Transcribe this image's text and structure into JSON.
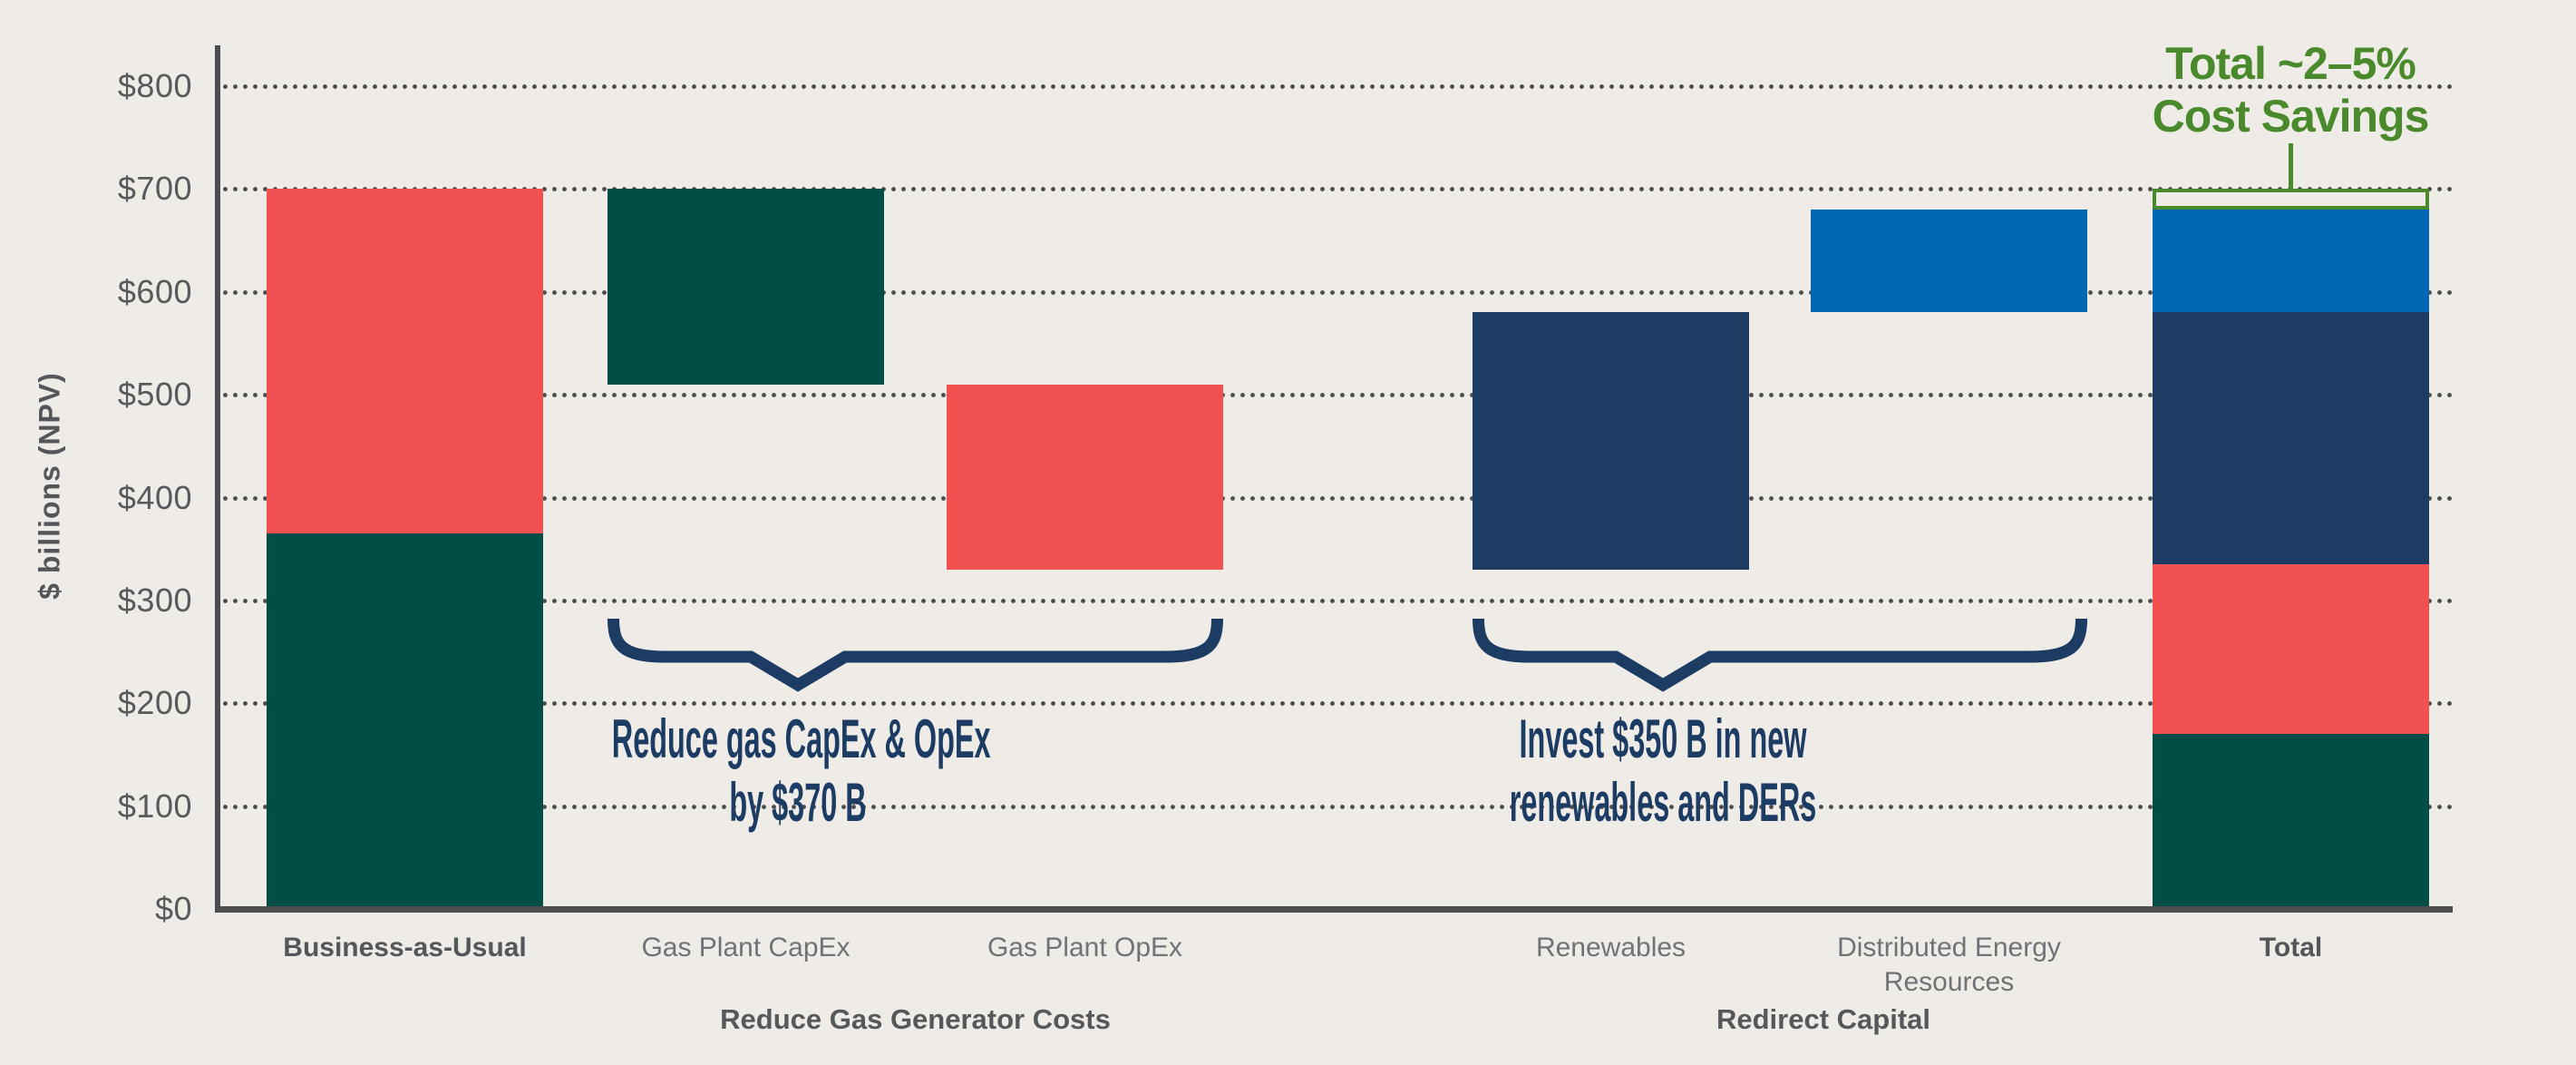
{
  "chart_data": {
    "type": "bar",
    "subtype": "stacked-waterfall",
    "title": "",
    "ylabel": "$ billions (NPV)",
    "y_axis": {
      "min": 0,
      "max": 800,
      "step": 100,
      "tick_prefix": "$",
      "tick_labels": [
        "$0",
        "$100",
        "$200",
        "$300",
        "$400",
        "$500",
        "$600",
        "$700",
        "$800"
      ],
      "grid_style": "dotted"
    },
    "colors": {
      "background": "#EFECE7",
      "teal": "#024D46",
      "coral": "#F15151",
      "navy": "#1C3C64",
      "blue": "#0067B4",
      "green": "#4A8A2D",
      "axis": "#4C4D4F",
      "tick_text": "#58595B",
      "label_text": "#717276",
      "label_text_bold": "#55565A"
    },
    "bars": [
      {
        "category_lines": [
          "Business-as-Usual"
        ],
        "bold_label": true,
        "segments": [
          {
            "from": 0,
            "to": 365,
            "color": "teal"
          },
          {
            "from": 365,
            "to": 700,
            "color": "coral"
          }
        ]
      },
      {
        "category_lines": [
          "Gas Plant CapEx"
        ],
        "bold_label": false,
        "segments": [
          {
            "from": 510,
            "to": 700,
            "color": "teal"
          }
        ]
      },
      {
        "category_lines": [
          "Gas Plant OpEx"
        ],
        "bold_label": false,
        "segments": [
          {
            "from": 330,
            "to": 510,
            "color": "coral"
          }
        ]
      },
      {
        "category_lines": [
          "Renewables"
        ],
        "bold_label": false,
        "segments": [
          {
            "from": 330,
            "to": 580,
            "color": "navy"
          }
        ]
      },
      {
        "category_lines": [
          "Distributed Energy",
          "Resources"
        ],
        "bold_label": false,
        "segments": [
          {
            "from": 580,
            "to": 680,
            "color": "blue"
          }
        ]
      },
      {
        "category_lines": [
          "Total"
        ],
        "bold_label": true,
        "segments": [
          {
            "from": 0,
            "to": 170,
            "color": "teal"
          },
          {
            "from": 170,
            "to": 335,
            "color": "coral"
          },
          {
            "from": 335,
            "to": 580,
            "color": "navy"
          },
          {
            "from": 580,
            "to": 680,
            "color": "blue"
          },
          {
            "from": 680,
            "to": 700,
            "color": "green",
            "style": "outline",
            "meaning": "cost savings"
          }
        ]
      }
    ],
    "groups": [
      {
        "label": "Reduce Gas Generator Costs",
        "bar_indices": [
          1,
          2
        ]
      },
      {
        "label": "Redirect Capital",
        "bar_indices": [
          3,
          4
        ]
      }
    ],
    "braces": [
      {
        "bar_indices": [
          1,
          2
        ],
        "lines": [
          "Reduce gas CapEx & OpEx",
          "by $370 B"
        ]
      },
      {
        "bar_indices": [
          3,
          4
        ],
        "lines": [
          "Invest $350 B in new",
          "renewables and DERs"
        ]
      }
    ],
    "callout": {
      "lines": [
        "Total ~2–5%",
        "Cost Savings"
      ]
    }
  }
}
